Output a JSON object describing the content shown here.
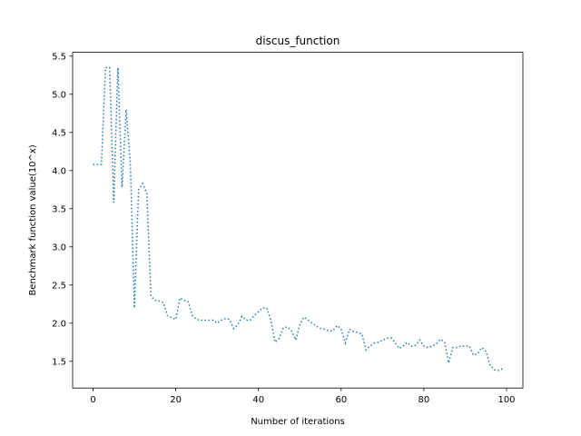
{
  "chart_data": {
    "type": "line",
    "title": "discus_function",
    "xlabel": "Number of iterations",
    "ylabel": "Benchmark function value(10^x)",
    "xlim": [
      -4.95,
      103.95
    ],
    "ylim": [
      1.15,
      5.55
    ],
    "xticks": [
      0,
      20,
      40,
      60,
      80,
      100
    ],
    "yticks": [
      1.5,
      2.0,
      2.5,
      3.0,
      3.5,
      4.0,
      4.5,
      5.0,
      5.5
    ],
    "ytick_labels": [
      "1.5",
      "2.0",
      "2.5",
      "3.0",
      "3.5",
      "4.0",
      "4.5",
      "5.0",
      "5.5"
    ],
    "grid": false,
    "line_style": "dotted",
    "series": [
      {
        "color": "#1f77b4",
        "x": [
          0,
          1,
          2,
          3,
          4,
          5,
          6,
          7,
          8,
          9,
          10,
          11,
          12,
          13,
          14,
          15,
          16,
          17,
          18,
          19,
          20,
          21,
          22,
          23,
          24,
          25,
          26,
          27,
          28,
          29,
          30,
          31,
          32,
          33,
          34,
          35,
          36,
          37,
          38,
          39,
          40,
          41,
          42,
          43,
          44,
          45,
          46,
          47,
          48,
          49,
          50,
          51,
          52,
          53,
          54,
          55,
          56,
          57,
          58,
          59,
          60,
          61,
          62,
          63,
          64,
          65,
          66,
          67,
          68,
          69,
          70,
          71,
          72,
          73,
          74,
          75,
          76,
          77,
          78,
          79,
          80,
          81,
          82,
          83,
          84,
          85,
          86,
          87,
          88,
          89,
          90,
          91,
          92,
          93,
          94,
          95,
          96,
          97,
          98,
          99
        ],
        "values": [
          4.08,
          4.08,
          4.08,
          5.35,
          5.35,
          3.58,
          5.35,
          3.78,
          4.8,
          4.1,
          2.2,
          3.75,
          3.83,
          3.7,
          2.35,
          2.3,
          2.29,
          2.27,
          2.1,
          2.07,
          2.05,
          2.33,
          2.3,
          2.28,
          2.1,
          2.05,
          2.04,
          2.04,
          2.04,
          2.04,
          2.0,
          2.04,
          2.06,
          2.05,
          1.93,
          1.98,
          2.09,
          2.04,
          2.04,
          2.1,
          2.15,
          2.2,
          2.2,
          2.04,
          1.75,
          1.8,
          1.94,
          1.95,
          1.9,
          1.78,
          1.98,
          2.08,
          2.04,
          2.0,
          1.96,
          1.93,
          1.92,
          1.9,
          1.9,
          1.97,
          1.92,
          1.74,
          1.92,
          1.89,
          1.88,
          1.86,
          1.65,
          1.7,
          1.74,
          1.75,
          1.78,
          1.8,
          1.81,
          1.75,
          1.67,
          1.7,
          1.75,
          1.7,
          1.71,
          1.78,
          1.7,
          1.68,
          1.7,
          1.73,
          1.79,
          1.75,
          1.48,
          1.68,
          1.68,
          1.7,
          1.7,
          1.7,
          1.58,
          1.6,
          1.68,
          1.63,
          1.45,
          1.39,
          1.38,
          1.4
        ]
      }
    ]
  }
}
